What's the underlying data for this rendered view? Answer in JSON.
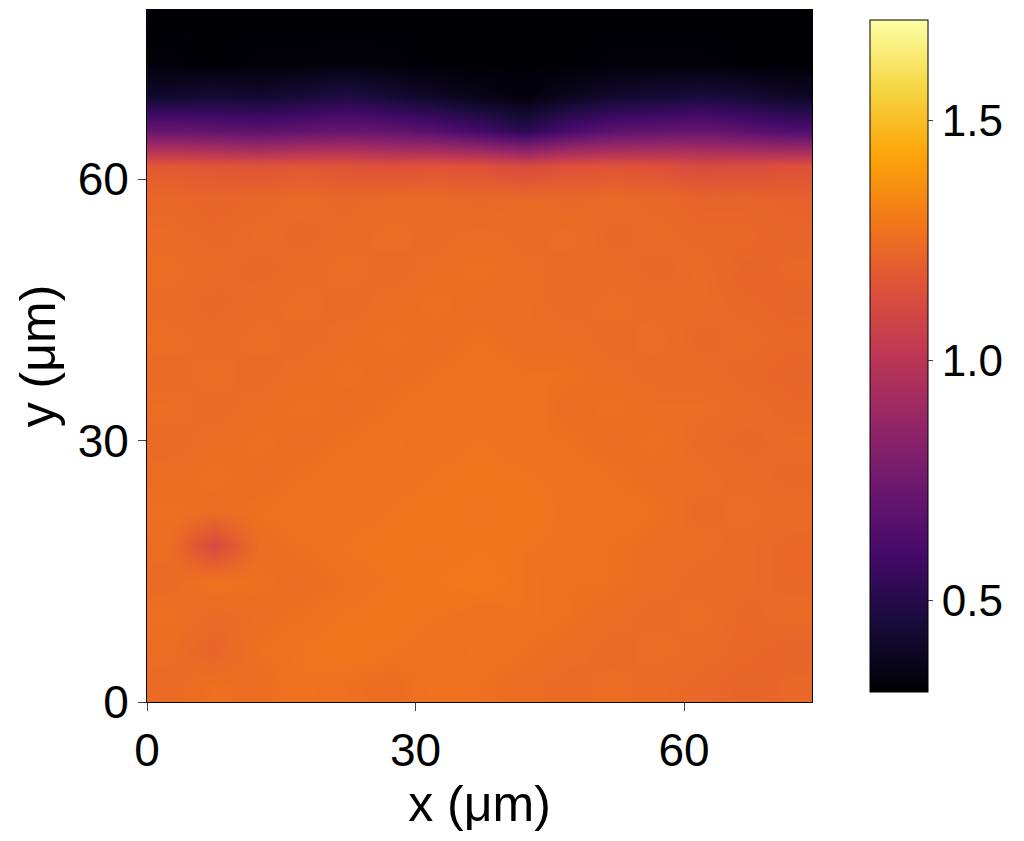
{
  "chart_data": {
    "type": "heatmap",
    "x_label": "x (μm)",
    "y_label": "y (μm)",
    "color": "inferno",
    "grid": false,
    "xlim": [
      0,
      74.3
    ],
    "ylim": [
      0,
      79.4
    ],
    "xticks": [
      0,
      30,
      60
    ],
    "yticks": [
      0,
      30,
      60
    ],
    "x": [
      2.48,
      7.43,
      12.38,
      17.34,
      22.29,
      27.24,
      32.2,
      37.15,
      42.11,
      47.06,
      52.01,
      56.97,
      61.92,
      66.87,
      71.82
    ],
    "y": [
      1.99,
      5.96,
      9.93,
      13.9,
      17.87,
      21.84,
      25.81,
      29.78,
      33.75,
      37.72,
      41.69,
      45.66,
      49.63,
      53.6,
      57.57,
      61.54,
      65.51,
      69.48,
      73.45,
      77.42
    ],
    "z": [
      [
        1.24,
        1.26,
        1.25,
        1.27,
        1.26,
        1.25,
        1.27,
        1.26,
        1.25,
        1.24,
        1.25,
        1.24,
        1.23,
        1.22,
        1.23
      ],
      [
        1.25,
        1.22,
        1.26,
        1.27,
        1.28,
        1.27,
        1.26,
        1.27,
        1.26,
        1.25,
        1.24,
        1.25,
        1.24,
        1.23,
        1.22
      ],
      [
        1.26,
        1.24,
        1.25,
        1.26,
        1.27,
        1.28,
        1.27,
        1.26,
        1.27,
        1.26,
        1.25,
        1.24,
        1.25,
        1.23,
        1.24
      ],
      [
        1.24,
        1.27,
        1.26,
        1.25,
        1.26,
        1.27,
        1.28,
        1.29,
        1.27,
        1.26,
        1.26,
        1.25,
        1.24,
        1.24,
        1.23
      ],
      [
        1.25,
        1.12,
        1.25,
        1.26,
        1.27,
        1.28,
        1.27,
        1.28,
        1.27,
        1.27,
        1.26,
        1.25,
        1.25,
        1.24,
        1.23
      ],
      [
        1.26,
        1.25,
        1.26,
        1.27,
        1.26,
        1.27,
        1.28,
        1.27,
        1.28,
        1.26,
        1.27,
        1.26,
        1.24,
        1.25,
        1.24
      ],
      [
        1.25,
        1.26,
        1.25,
        1.26,
        1.27,
        1.26,
        1.27,
        1.28,
        1.27,
        1.27,
        1.26,
        1.25,
        1.25,
        1.24,
        1.23
      ],
      [
        1.24,
        1.25,
        1.26,
        1.25,
        1.26,
        1.27,
        1.26,
        1.27,
        1.26,
        1.26,
        1.25,
        1.26,
        1.24,
        1.23,
        1.24
      ],
      [
        1.25,
        1.24,
        1.25,
        1.26,
        1.25,
        1.26,
        1.27,
        1.26,
        1.27,
        1.25,
        1.26,
        1.25,
        1.25,
        1.24,
        1.23
      ],
      [
        1.24,
        1.25,
        1.24,
        1.25,
        1.26,
        1.25,
        1.26,
        1.27,
        1.26,
        1.26,
        1.25,
        1.24,
        1.24,
        1.23,
        1.22
      ],
      [
        1.25,
        1.24,
        1.25,
        1.24,
        1.25,
        1.26,
        1.25,
        1.26,
        1.25,
        1.25,
        1.24,
        1.25,
        1.23,
        1.24,
        1.23
      ],
      [
        1.24,
        1.23,
        1.24,
        1.25,
        1.24,
        1.25,
        1.26,
        1.25,
        1.25,
        1.24,
        1.25,
        1.24,
        1.24,
        1.23,
        1.22
      ],
      [
        1.25,
        1.24,
        1.23,
        1.24,
        1.25,
        1.24,
        1.25,
        1.26,
        1.25,
        1.24,
        1.24,
        1.23,
        1.24,
        1.22,
        1.23
      ],
      [
        1.24,
        1.23,
        1.24,
        1.23,
        1.24,
        1.25,
        1.24,
        1.25,
        1.24,
        1.25,
        1.23,
        1.24,
        1.23,
        1.23,
        1.22
      ],
      [
        1.23,
        1.22,
        1.23,
        1.24,
        1.23,
        1.24,
        1.24,
        1.23,
        1.24,
        1.23,
        1.24,
        1.23,
        1.22,
        1.22,
        1.21
      ],
      [
        1.18,
        1.17,
        1.16,
        1.17,
        1.16,
        1.15,
        1.16,
        1.15,
        1.12,
        1.15,
        1.16,
        1.15,
        1.12,
        1.13,
        1.15
      ],
      [
        0.72,
        0.7,
        0.68,
        0.7,
        0.72,
        0.7,
        0.66,
        0.6,
        0.52,
        0.62,
        0.68,
        0.7,
        0.72,
        0.68,
        0.64
      ],
      [
        0.42,
        0.44,
        0.42,
        0.45,
        0.48,
        0.44,
        0.4,
        0.36,
        0.33,
        0.38,
        0.42,
        0.44,
        0.46,
        0.44,
        0.4
      ],
      [
        0.32,
        0.31,
        0.32,
        0.32,
        0.33,
        0.32,
        0.31,
        0.31,
        0.31,
        0.31,
        0.32,
        0.32,
        0.32,
        0.31,
        0.31
      ],
      [
        0.31,
        0.31,
        0.31,
        0.31,
        0.31,
        0.31,
        0.31,
        0.31,
        0.31,
        0.31,
        0.31,
        0.31,
        0.31,
        0.31,
        0.31
      ]
    ],
    "zlim": [
      0.31,
      1.71
    ],
    "zticks": [
      0.5,
      {
        "value": 1,
        "label": "1.0"
      },
      1.5
    ]
  }
}
